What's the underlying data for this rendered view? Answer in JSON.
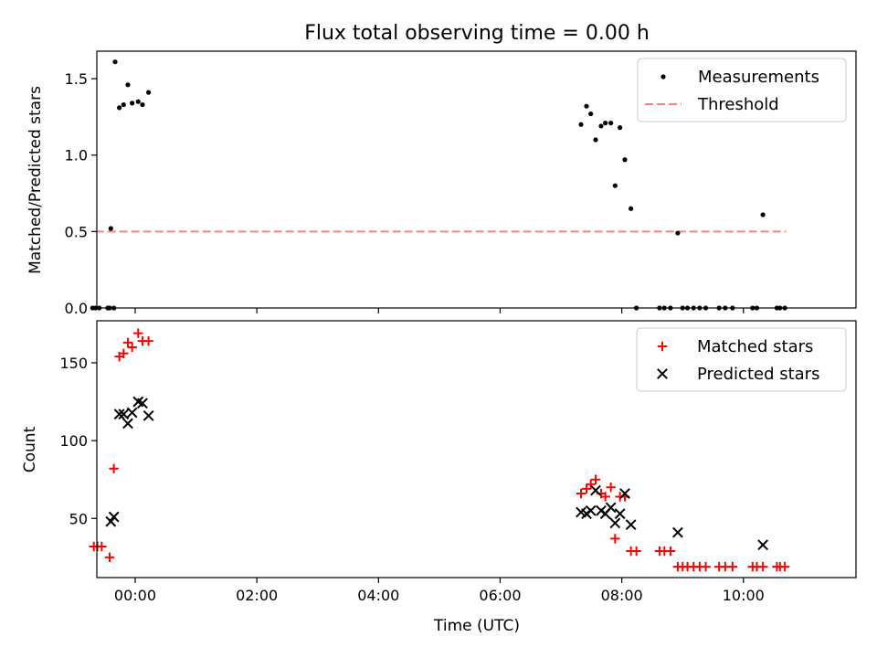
{
  "figure": {
    "title": "Flux total observing time = 0.00 h",
    "xlabel": "Time (UTC)"
  },
  "chart_data": [
    {
      "type": "scatter",
      "panel": "top",
      "ylabel": "Matched/Predicted stars",
      "xlim": [
        -0.63,
        11.85
      ],
      "ylim": [
        0,
        1.68
      ],
      "x_unit": "hours UTC (HH:MM)",
      "xticks": [
        0,
        2,
        4,
        6,
        8,
        10
      ],
      "xtick_labels": [
        "",
        "",
        "",
        "",
        "",
        ""
      ],
      "yticks": [
        0.0,
        0.5,
        1.0,
        1.5
      ],
      "ytick_labels": [
        "0.0",
        "0.5",
        "1.0",
        "1.5"
      ],
      "legend_position": "top-right",
      "grid": false,
      "series": [
        {
          "name": "Measurements",
          "marker": "dot",
          "color": "#000000",
          "points": [
            [
              -0.7,
              0
            ],
            [
              -0.65,
              0
            ],
            [
              -0.59,
              0
            ],
            [
              -0.45,
              0
            ],
            [
              -0.42,
              0
            ],
            [
              -0.35,
              0
            ],
            [
              -0.4,
              0.52
            ],
            [
              -0.33,
              1.61
            ],
            [
              -0.26,
              1.31
            ],
            [
              -0.19,
              1.33
            ],
            [
              -0.12,
              1.46
            ],
            [
              -0.05,
              1.34
            ],
            [
              0.05,
              1.35
            ],
            [
              0.12,
              1.33
            ],
            [
              0.22,
              1.41
            ],
            [
              7.33,
              1.2
            ],
            [
              7.42,
              1.32
            ],
            [
              7.49,
              1.27
            ],
            [
              7.57,
              1.1
            ],
            [
              7.66,
              1.19
            ],
            [
              7.73,
              1.21
            ],
            [
              7.82,
              1.21
            ],
            [
              7.89,
              0.8
            ],
            [
              7.97,
              1.18
            ],
            [
              8.05,
              0.97
            ],
            [
              8.15,
              0.65
            ],
            [
              8.24,
              0
            ],
            [
              8.62,
              0
            ],
            [
              8.7,
              0
            ],
            [
              8.8,
              0
            ],
            [
              8.92,
              0.49
            ],
            [
              9.0,
              0
            ],
            [
              9.08,
              0
            ],
            [
              9.18,
              0
            ],
            [
              9.28,
              0
            ],
            [
              9.38,
              0
            ],
            [
              9.6,
              0
            ],
            [
              9.7,
              0
            ],
            [
              9.82,
              0
            ],
            [
              10.15,
              0
            ],
            [
              10.22,
              0
            ],
            [
              10.32,
              0.61
            ],
            [
              10.55,
              0
            ],
            [
              10.6,
              0
            ],
            [
              10.68,
              0
            ]
          ]
        },
        {
          "name": "Threshold",
          "style": "dashed",
          "color": "#ff7f7f",
          "x": [
            -0.65,
            10.7
          ],
          "y": [
            0.5,
            0.5
          ]
        }
      ]
    },
    {
      "type": "scatter",
      "panel": "bottom",
      "ylabel": "Count",
      "xlim": [
        -0.63,
        11.85
      ],
      "ylim": [
        12,
        177
      ],
      "x_unit": "hours UTC (HH:MM)",
      "xticks": [
        0,
        2,
        4,
        6,
        8,
        10
      ],
      "xtick_labels": [
        "00:00",
        "02:00",
        "04:00",
        "06:00",
        "08:00",
        "10:00"
      ],
      "yticks": [
        50,
        100,
        150
      ],
      "ytick_labels": [
        "50",
        "100",
        "150"
      ],
      "legend_position": "top-right",
      "grid": false,
      "series": [
        {
          "name": "Matched stars",
          "marker": "plus",
          "color": "#ff0000",
          "points": [
            [
              -0.68,
              32
            ],
            [
              -0.62,
              32
            ],
            [
              -0.55,
              32
            ],
            [
              -0.42,
              25
            ],
            [
              -0.35,
              82
            ],
            [
              -0.26,
              154
            ],
            [
              -0.19,
              156
            ],
            [
              -0.12,
              163
            ],
            [
              -0.05,
              160
            ],
            [
              0.05,
              169
            ],
            [
              0.12,
              164
            ],
            [
              0.22,
              164
            ],
            [
              7.33,
              66
            ],
            [
              7.42,
              69
            ],
            [
              7.49,
              72
            ],
            [
              7.57,
              75
            ],
            [
              7.66,
              66
            ],
            [
              7.73,
              64
            ],
            [
              7.82,
              70
            ],
            [
              7.89,
              37
            ],
            [
              7.97,
              64
            ],
            [
              8.05,
              64
            ],
            [
              8.15,
              29
            ],
            [
              8.24,
              29
            ],
            [
              8.62,
              29
            ],
            [
              8.7,
              29
            ],
            [
              8.8,
              29
            ],
            [
              8.92,
              19
            ],
            [
              9.0,
              19
            ],
            [
              9.08,
              19
            ],
            [
              9.18,
              19
            ],
            [
              9.28,
              19
            ],
            [
              9.38,
              19
            ],
            [
              9.6,
              19
            ],
            [
              9.7,
              19
            ],
            [
              9.82,
              19
            ],
            [
              10.15,
              19
            ],
            [
              10.22,
              19
            ],
            [
              10.32,
              19
            ],
            [
              10.55,
              19
            ],
            [
              10.6,
              19
            ],
            [
              10.68,
              19
            ]
          ]
        },
        {
          "name": "Predicted stars",
          "marker": "x",
          "color": "#000000",
          "points": [
            [
              -0.4,
              48
            ],
            [
              -0.35,
              51
            ],
            [
              -0.26,
              117
            ],
            [
              -0.19,
              117
            ],
            [
              -0.12,
              111
            ],
            [
              -0.05,
              118
            ],
            [
              0.05,
              125
            ],
            [
              0.12,
              124
            ],
            [
              0.22,
              116
            ],
            [
              7.33,
              54
            ],
            [
              7.42,
              53
            ],
            [
              7.49,
              55
            ],
            [
              7.57,
              68
            ],
            [
              7.66,
              55
            ],
            [
              7.73,
              53
            ],
            [
              7.82,
              57
            ],
            [
              7.89,
              47
            ],
            [
              7.97,
              53
            ],
            [
              8.05,
              66
            ],
            [
              8.15,
              46
            ],
            [
              8.92,
              41
            ],
            [
              10.32,
              33
            ]
          ]
        }
      ]
    }
  ]
}
